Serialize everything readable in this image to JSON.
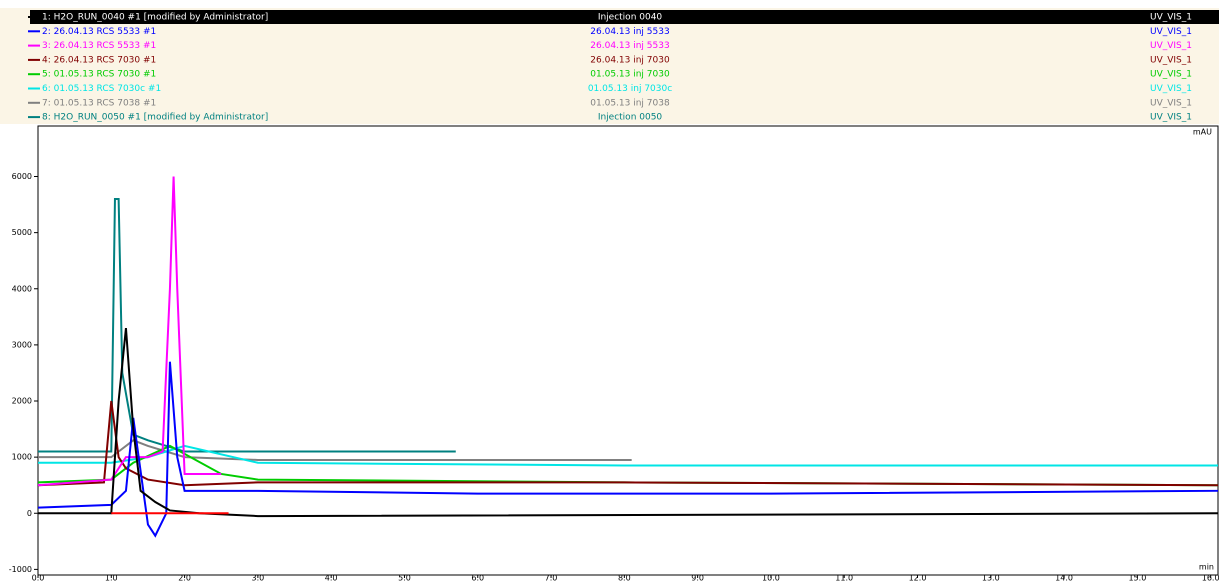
{
  "chart_data": {
    "type": "line",
    "y_unit": "mAU",
    "x_unit": "min",
    "legend": [
      {
        "left": "1: H2O_RUN_0040 #1 [modified by Administrator]",
        "middle": "Injection 0040",
        "right": "UV_VIS_1",
        "color": "#000000"
      },
      {
        "left": "2: 26.04.13 RCS 5533 #1",
        "middle": "26.04.13 inj 5533",
        "right": "UV_VIS_1",
        "color": "#0000ff"
      },
      {
        "left": "3: 26.04.13 RCS 5533 #1",
        "middle": "26.04.13 inj 5533",
        "right": "UV_VIS_1",
        "color": "#ff00ff"
      },
      {
        "left": "4: 26.04.13 RCS 7030 #1",
        "middle": "26.04.13 inj 7030",
        "right": "UV_VIS_1",
        "color": "#800000"
      },
      {
        "left": "5: 01.05.13 RCS 7030 #1",
        "middle": "01.05.13 inj 7030",
        "right": "UV_VIS_1",
        "color": "#00cc00"
      },
      {
        "left": "6: 01.05.13 RCS 7030c #1",
        "middle": "01.05.13 inj 7030c",
        "right": "UV_VIS_1",
        "color": "#00e5e5"
      },
      {
        "left": "7: 01.05.13 RCS 7038 #1",
        "middle": "01.05.13 inj 7038",
        "right": "UV_VIS_1",
        "color": "#808080"
      },
      {
        "left": "8: H2O_RUN_0050 #1 [modified by Administrator]",
        "middle": "Injection 0050",
        "right": "UV_VIS_1",
        "color": "#008080"
      }
    ],
    "series": [
      {
        "name": "teal",
        "color": "#008080",
        "x": [
          0,
          1.0,
          1.05,
          1.1,
          1.15,
          1.3,
          1.5,
          2.0,
          5.7
        ],
        "values": [
          1100,
          1100,
          5600,
          5600,
          2500,
          1400,
          1300,
          1100,
          1100
        ]
      },
      {
        "name": "gray",
        "color": "#808080",
        "x": [
          0,
          1.0,
          1.3,
          1.5,
          2.0,
          3.0,
          8.1
        ],
        "values": [
          1000,
          1000,
          1300,
          1200,
          1000,
          950,
          950
        ]
      },
      {
        "name": "cyan",
        "color": "#00e5e5",
        "x": [
          0,
          1.0,
          1.5,
          2.0,
          3.0,
          8.0,
          16.1
        ],
        "values": [
          900,
          900,
          1000,
          1200,
          900,
          850,
          850
        ]
      },
      {
        "name": "green",
        "color": "#00cc00",
        "x": [
          0,
          1.0,
          1.3,
          1.8,
          2.5,
          3.0,
          8.0,
          16.1
        ],
        "values": [
          550,
          600,
          900,
          1200,
          700,
          600,
          550,
          500
        ]
      },
      {
        "name": "darkred",
        "color": "#800000",
        "x": [
          0,
          0.9,
          1.0,
          1.1,
          1.2,
          1.5,
          2.0,
          3.0,
          8.0,
          16.1
        ],
        "values": [
          500,
          550,
          2000,
          1000,
          800,
          600,
          500,
          550,
          550,
          500
        ]
      },
      {
        "name": "magenta",
        "color": "#ff00ff",
        "x": [
          0,
          1.0,
          1.2,
          1.5,
          1.7,
          1.8,
          1.85,
          1.9,
          2.0,
          2.5
        ],
        "values": [
          500,
          600,
          1000,
          1000,
          1100,
          4000,
          6000,
          4000,
          700,
          700
        ]
      },
      {
        "name": "blue",
        "color": "#0000ff",
        "x": [
          0,
          1.0,
          1.2,
          1.3,
          1.5,
          1.6,
          1.75,
          1.8,
          1.9,
          2.0,
          3.0,
          6.0,
          10.0,
          16.1
        ],
        "values": [
          100,
          150,
          400,
          1700,
          -200,
          -400,
          0,
          2700,
          1000,
          400,
          400,
          350,
          350,
          400
        ]
      },
      {
        "name": "black",
        "color": "#000000",
        "x": [
          0,
          1.0,
          1.1,
          1.2,
          1.3,
          1.4,
          1.6,
          1.8,
          2.2,
          3.0,
          16.1
        ],
        "values": [
          0,
          0,
          2000,
          3300,
          1500,
          400,
          200,
          50,
          0,
          -50,
          0
        ]
      },
      {
        "name": "red",
        "color": "#ff0000",
        "x": [
          1.0,
          2.6
        ],
        "values": [
          0,
          0
        ]
      }
    ],
    "xlim": [
      0,
      16.1
    ],
    "ylim": [
      -1100,
      6900
    ],
    "yticks": [
      -1000,
      0,
      1000,
      2000,
      3000,
      4000,
      5000,
      6000
    ],
    "xticks": [
      {
        "value": 0,
        "label": "0.0"
      },
      {
        "value": 1,
        "label": "1.0"
      },
      {
        "value": 2,
        "label": "2.0"
      },
      {
        "value": 3,
        "label": "3.0"
      },
      {
        "value": 4,
        "label": "4.0"
      },
      {
        "value": 5,
        "label": "5.0"
      },
      {
        "value": 6,
        "label": "6.0"
      },
      {
        "value": 7,
        "label": "7.0"
      },
      {
        "value": 8,
        "label": "8.0"
      },
      {
        "value": 9,
        "label": "9.0"
      },
      {
        "value": 10,
        "label": "10.0"
      },
      {
        "value": 11,
        "label": "11.0"
      },
      {
        "value": 12,
        "label": "12.0"
      },
      {
        "value": 13,
        "label": "13.0"
      },
      {
        "value": 14,
        "label": "14.0"
      },
      {
        "value": 15,
        "label": "15.0"
      },
      {
        "value": 16,
        "label": "16.0"
      }
    ]
  }
}
